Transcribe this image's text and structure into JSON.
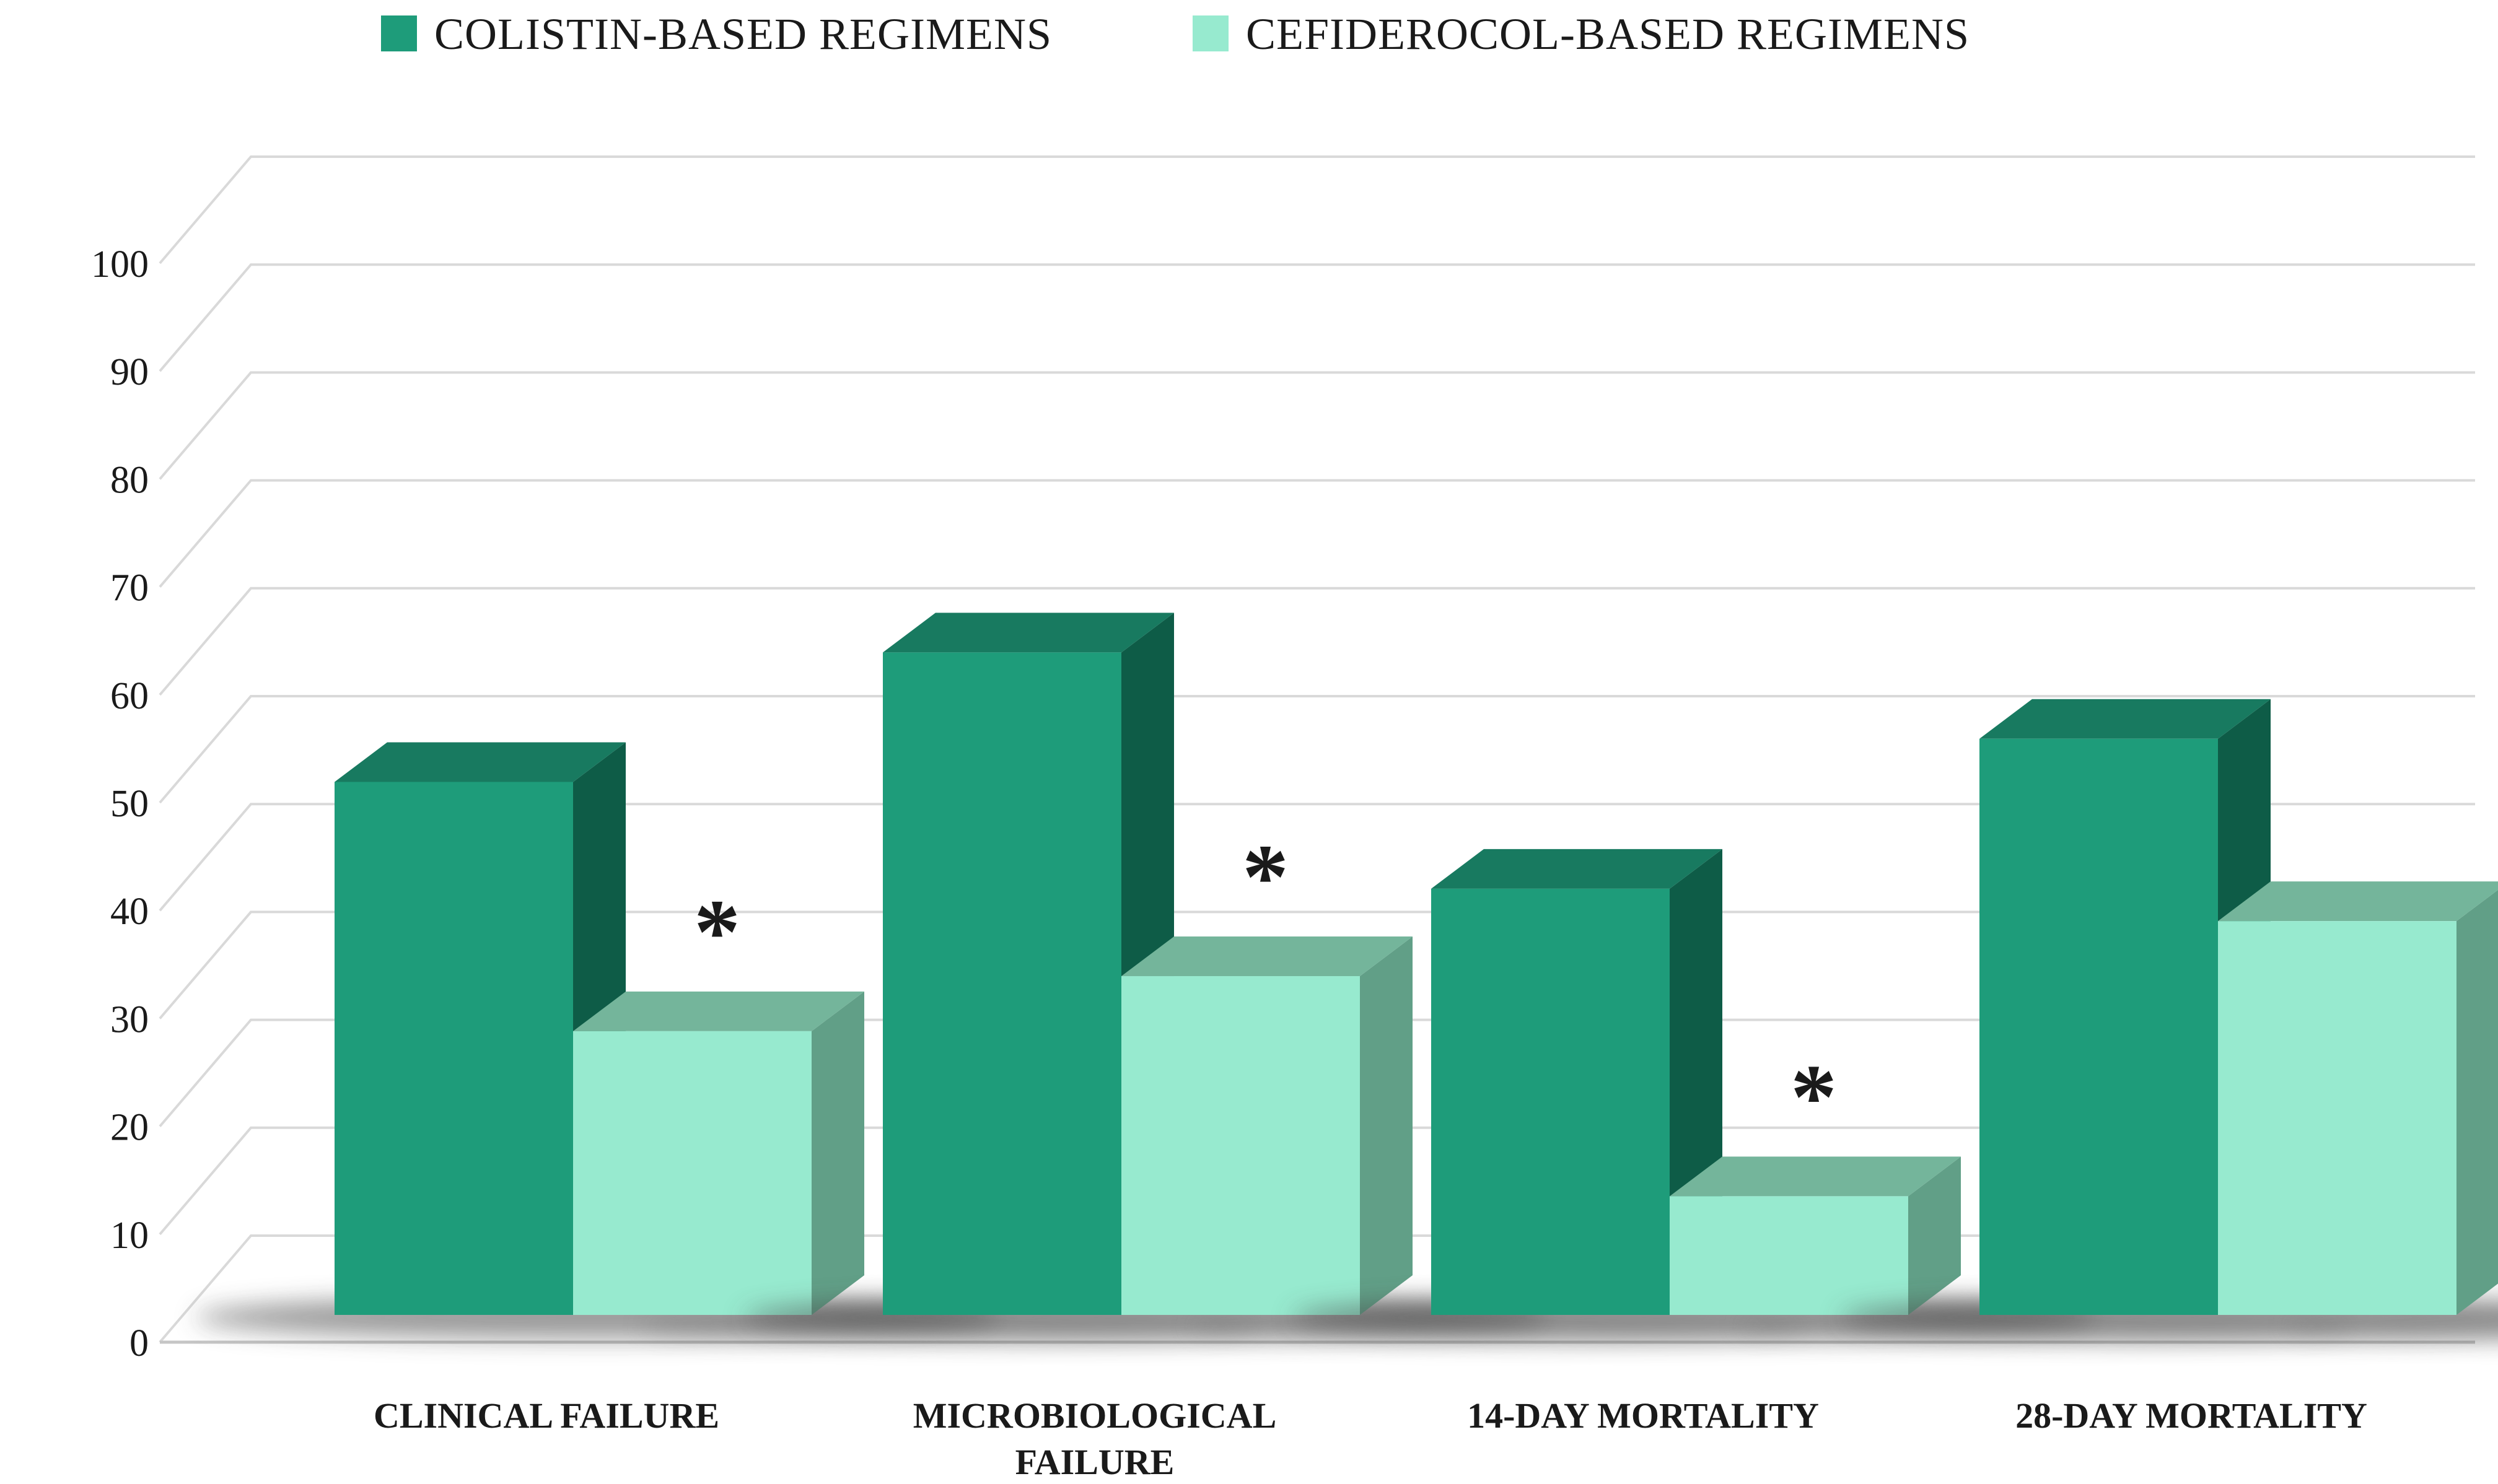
{
  "chart_data": {
    "type": "bar",
    "style": "3d-clustered-column",
    "title": "",
    "categories": [
      "CLINICAL FAILURE",
      "MICROBIOLOGICAL\nFAILURE",
      "14-DAY MORTALITY",
      "28-DAY MORTALITY"
    ],
    "series": [
      {
        "name": "COLISTIN-BASED REGIMENS",
        "values": [
          49.4,
          61.4,
          39.5,
          53.4
        ],
        "color_front": "#1E9C7A",
        "color_top": "#187A60",
        "color_side": "#0E5C47"
      },
      {
        "name": "CEFIDEROCOL-BASED REGIMENS",
        "values": [
          26.3,
          31.4,
          11.0,
          36.5
        ],
        "significance": [
          true,
          true,
          true,
          false
        ],
        "color_front": "#97EACF",
        "color_top": "#74B59B",
        "color_side": "#619F87"
      }
    ],
    "significance_symbol": "*",
    "y_axis": {
      "min": 0,
      "max": 100,
      "step": 10,
      "tick_labels": [
        "0",
        "10",
        "20",
        "30",
        "40",
        "50",
        "60",
        "70",
        "80",
        "90",
        "100"
      ]
    },
    "xlabel": "",
    "ylabel": "",
    "grid": true,
    "legend_position": "top-center",
    "colors": {
      "background": "#FFFFFF",
      "gridline": "#D9D9D9",
      "axis_line": "#C6C6C6",
      "text": "#1A1A1A",
      "shadow": "#454545"
    }
  }
}
